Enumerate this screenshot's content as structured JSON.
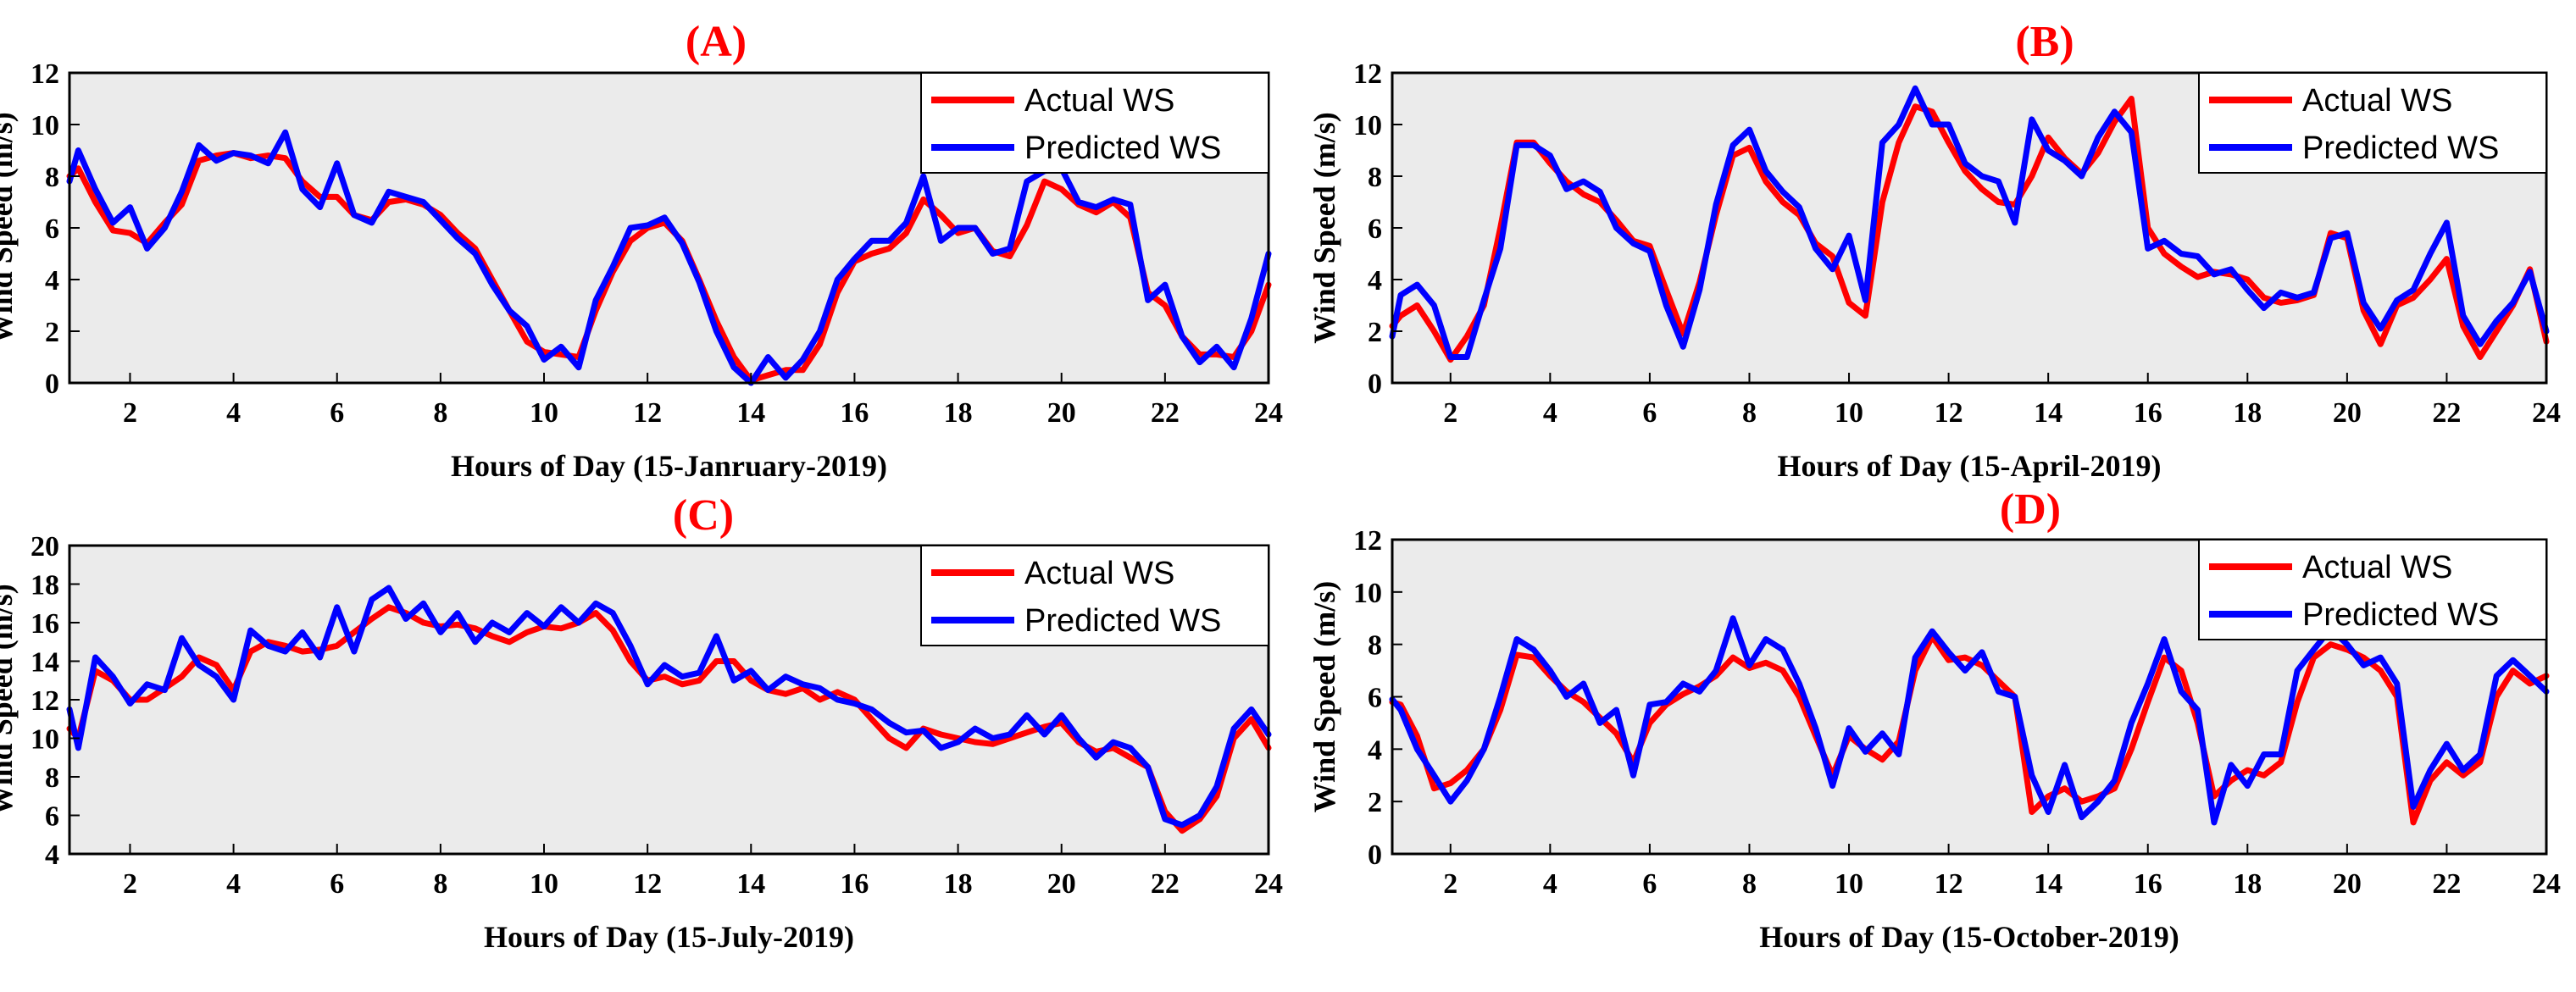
{
  "colors": {
    "actual": "#ff0000",
    "predicted": "#0000ff",
    "plot_bg": "#ebebeb",
    "axis": "#000000",
    "title": "#ff0000"
  },
  "chart_data": [
    {
      "type": "line",
      "panel": "A",
      "title": "(A)",
      "xlabel": "Hours of Day (15-Janruary-2019)",
      "ylabel": "Wind Speed (m/s)",
      "xlim": [
        0.83,
        24
      ],
      "ylim": [
        0,
        12
      ],
      "xticks": [
        2,
        4,
        6,
        8,
        10,
        12,
        14,
        16,
        18,
        20,
        22,
        24
      ],
      "xtick_labels": [
        "2",
        "4",
        "6",
        "8",
        "10",
        "12",
        "14",
        "16",
        "18",
        "20",
        "22",
        "24"
      ],
      "yticks": [
        0,
        2,
        4,
        6,
        8,
        10,
        12
      ],
      "ytick_labels": [
        "0",
        "2",
        "4",
        "6",
        "8",
        "10",
        "12"
      ],
      "legend": "top-right",
      "x": [
        0.83,
        1.0,
        1.33,
        1.67,
        2.0,
        2.33,
        2.67,
        3.0,
        3.33,
        3.67,
        4.0,
        4.33,
        4.67,
        5.0,
        5.33,
        5.67,
        6.0,
        6.33,
        6.67,
        7.0,
        7.33,
        7.67,
        8.0,
        8.33,
        8.67,
        9.0,
        9.33,
        9.67,
        10.0,
        10.33,
        10.67,
        11.0,
        11.33,
        11.67,
        12.0,
        12.33,
        12.67,
        13.0,
        13.33,
        13.67,
        14.0,
        14.33,
        14.67,
        15.0,
        15.33,
        15.67,
        16.0,
        16.33,
        16.67,
        17.0,
        17.33,
        17.67,
        18.0,
        18.33,
        18.67,
        19.0,
        19.33,
        19.67,
        20.0,
        20.33,
        20.67,
        21.0,
        21.33,
        21.67,
        22.0,
        22.33,
        22.67,
        23.0,
        23.33,
        23.67,
        24.0
      ],
      "series": [
        {
          "name": "Actual WS",
          "values": [
            8.0,
            8.3,
            7.0,
            5.9,
            5.8,
            5.4,
            6.2,
            6.9,
            8.6,
            8.8,
            8.9,
            8.7,
            8.8,
            8.7,
            7.8,
            7.2,
            7.2,
            6.5,
            6.3,
            7.0,
            7.1,
            6.9,
            6.5,
            5.8,
            5.2,
            4.0,
            2.8,
            1.6,
            1.2,
            1.1,
            1.0,
            2.8,
            4.3,
            5.5,
            6.0,
            6.2,
            5.5,
            4.0,
            2.4,
            1.0,
            0.1,
            0.3,
            0.5,
            0.5,
            1.5,
            3.5,
            4.7,
            5.0,
            5.2,
            5.8,
            7.1,
            6.5,
            5.8,
            6.0,
            5.1,
            4.9,
            6.1,
            7.8,
            7.5,
            6.9,
            6.6,
            7.0,
            6.4,
            3.5,
            3.0,
            1.8,
            1.1,
            1.1,
            1.0,
            2.0,
            3.8
          ]
        },
        {
          "name": "Predicted WS",
          "values": [
            7.8,
            9.0,
            7.5,
            6.2,
            6.8,
            5.2,
            6.0,
            7.4,
            9.2,
            8.6,
            8.9,
            8.8,
            8.5,
            9.7,
            7.5,
            6.8,
            8.5,
            6.5,
            6.2,
            7.4,
            7.2,
            7.0,
            6.3,
            5.6,
            5.0,
            3.8,
            2.8,
            2.2,
            0.9,
            1.4,
            0.6,
            3.2,
            4.5,
            6.0,
            6.1,
            6.4,
            5.4,
            3.9,
            2.0,
            0.6,
            0.0,
            1.0,
            0.2,
            0.9,
            2.0,
            4.0,
            4.8,
            5.5,
            5.5,
            6.2,
            8.0,
            5.5,
            6.0,
            6.0,
            5.0,
            5.2,
            7.8,
            8.2,
            8.3,
            7.0,
            6.8,
            7.1,
            6.9,
            3.2,
            3.8,
            1.8,
            0.8,
            1.4,
            0.6,
            2.5,
            5.0
          ]
        }
      ]
    },
    {
      "type": "line",
      "panel": "B",
      "title": "(B)",
      "xlabel": "Hours of Day (15-April-2019)",
      "ylabel": "Wind Speed (m/s)",
      "xlim": [
        0.83,
        24
      ],
      "ylim": [
        0,
        12
      ],
      "xticks": [
        2,
        4,
        6,
        8,
        10,
        12,
        14,
        16,
        18,
        20,
        22,
        24
      ],
      "xtick_labels": [
        "2",
        "4",
        "6",
        "8",
        "10",
        "12",
        "14",
        "16",
        "18",
        "20",
        "22",
        "24"
      ],
      "yticks": [
        0,
        2,
        4,
        6,
        8,
        10,
        12
      ],
      "ytick_labels": [
        "0",
        "2",
        "4",
        "6",
        "8",
        "10",
        "12"
      ],
      "legend": "top-right",
      "x": [
        0.83,
        1.0,
        1.33,
        1.67,
        2.0,
        2.33,
        2.67,
        3.0,
        3.33,
        3.67,
        4.0,
        4.33,
        4.67,
        5.0,
        5.33,
        5.67,
        6.0,
        6.33,
        6.67,
        7.0,
        7.33,
        7.67,
        8.0,
        8.33,
        8.67,
        9.0,
        9.33,
        9.67,
        10.0,
        10.33,
        10.67,
        11.0,
        11.33,
        11.67,
        12.0,
        12.33,
        12.67,
        13.0,
        13.33,
        13.67,
        14.0,
        14.33,
        14.67,
        15.0,
        15.33,
        15.67,
        16.0,
        16.33,
        16.67,
        17.0,
        17.33,
        17.67,
        18.0,
        18.33,
        18.67,
        19.0,
        19.33,
        19.67,
        20.0,
        20.33,
        20.67,
        21.0,
        21.33,
        21.67,
        22.0,
        22.33,
        22.67,
        23.0,
        23.33,
        23.67,
        24.0
      ],
      "series": [
        {
          "name": "Actual WS",
          "values": [
            2.2,
            2.6,
            3.0,
            2.0,
            0.9,
            1.8,
            3.0,
            6.0,
            9.3,
            9.3,
            8.5,
            7.8,
            7.3,
            7.0,
            6.3,
            5.5,
            5.3,
            3.6,
            1.9,
            3.9,
            6.5,
            8.8,
            9.1,
            7.8,
            7.0,
            6.5,
            5.4,
            4.9,
            3.1,
            2.6,
            7.0,
            9.3,
            10.7,
            10.5,
            9.3,
            8.2,
            7.5,
            7.0,
            6.9,
            8.0,
            9.5,
            8.7,
            8.1,
            8.9,
            10.1,
            11.0,
            6.0,
            5.0,
            4.5,
            4.1,
            4.3,
            4.2,
            4.0,
            3.3,
            3.1,
            3.2,
            3.4,
            5.8,
            5.6,
            2.8,
            1.5,
            3.0,
            3.3,
            4.0,
            4.8,
            2.2,
            1.0,
            2.0,
            3.0,
            4.4,
            1.6
          ]
        },
        {
          "name": "Predicted WS",
          "values": [
            1.8,
            3.4,
            3.8,
            3.0,
            1.0,
            1.0,
            3.2,
            5.2,
            9.2,
            9.2,
            8.8,
            7.5,
            7.8,
            7.4,
            6.0,
            5.4,
            5.1,
            3.0,
            1.4,
            3.6,
            6.9,
            9.2,
            9.8,
            8.2,
            7.4,
            6.8,
            5.2,
            4.4,
            5.7,
            3.2,
            9.3,
            10.0,
            11.4,
            10.0,
            10.0,
            8.5,
            8.0,
            7.8,
            6.2,
            10.2,
            9.0,
            8.6,
            8.0,
            9.5,
            10.5,
            9.7,
            5.2,
            5.5,
            5.0,
            4.9,
            4.2,
            4.4,
            3.6,
            2.9,
            3.5,
            3.3,
            3.5,
            5.6,
            5.8,
            3.1,
            2.1,
            3.2,
            3.6,
            5.0,
            6.2,
            2.6,
            1.5,
            2.4,
            3.1,
            4.3,
            2.0
          ]
        }
      ]
    },
    {
      "type": "line",
      "panel": "C",
      "title": "(C)",
      "xlabel": "Hours of Day (15-July-2019)",
      "ylabel": "Wind Speed (m/s)",
      "xlim": [
        0.83,
        24
      ],
      "ylim": [
        4,
        20
      ],
      "xticks": [
        2,
        4,
        6,
        8,
        10,
        12,
        14,
        16,
        18,
        20,
        22,
        24
      ],
      "xtick_labels": [
        "2",
        "4",
        "6",
        "8",
        "10",
        "12",
        "14",
        "16",
        "18",
        "20",
        "22",
        "24"
      ],
      "yticks": [
        4,
        6,
        8,
        10,
        12,
        14,
        16,
        18,
        20
      ],
      "ytick_labels": [
        "4",
        "6",
        "8",
        "10",
        "12",
        "14",
        "16",
        "18",
        "20"
      ],
      "legend": "top-right",
      "x": [
        0.83,
        1.0,
        1.33,
        1.67,
        2.0,
        2.33,
        2.67,
        3.0,
        3.33,
        3.67,
        4.0,
        4.33,
        4.67,
        5.0,
        5.33,
        5.67,
        6.0,
        6.33,
        6.67,
        7.0,
        7.33,
        7.67,
        8.0,
        8.33,
        8.67,
        9.0,
        9.33,
        9.67,
        10.0,
        10.33,
        10.67,
        11.0,
        11.33,
        11.67,
        12.0,
        12.33,
        12.67,
        13.0,
        13.33,
        13.67,
        14.0,
        14.33,
        14.67,
        15.0,
        15.33,
        15.67,
        16.0,
        16.33,
        16.67,
        17.0,
        17.33,
        17.67,
        18.0,
        18.33,
        18.67,
        19.0,
        19.33,
        19.67,
        20.0,
        20.33,
        20.67,
        21.0,
        21.33,
        21.67,
        22.0,
        22.33,
        22.67,
        23.0,
        23.33,
        23.67,
        24.0
      ],
      "series": [
        {
          "name": "Actual WS",
          "values": [
            10.5,
            10.0,
            13.5,
            13.0,
            12.0,
            12.0,
            12.6,
            13.2,
            14.2,
            13.8,
            12.5,
            14.5,
            15.0,
            14.8,
            14.5,
            14.6,
            14.8,
            15.5,
            16.2,
            16.8,
            16.5,
            16.0,
            15.8,
            15.9,
            15.7,
            15.3,
            15.0,
            15.5,
            15.8,
            15.7,
            16.0,
            16.5,
            15.6,
            14.0,
            13.0,
            13.2,
            12.8,
            13.0,
            14.0,
            14.0,
            13.0,
            12.5,
            12.3,
            12.6,
            12.0,
            12.4,
            12.0,
            11.0,
            10.0,
            9.5,
            10.5,
            10.2,
            10.0,
            9.8,
            9.7,
            10.0,
            10.3,
            10.6,
            10.8,
            9.8,
            9.3,
            9.5,
            9.0,
            8.5,
            6.2,
            5.2,
            5.8,
            7.0,
            10.0,
            11.0,
            9.5
          ]
        },
        {
          "name": "Predicted WS",
          "values": [
            11.5,
            9.5,
            14.2,
            13.2,
            11.8,
            12.8,
            12.5,
            15.2,
            13.8,
            13.2,
            12.0,
            15.6,
            14.8,
            14.5,
            15.5,
            14.2,
            16.8,
            14.5,
            17.2,
            17.8,
            16.2,
            17.0,
            15.5,
            16.5,
            15.0,
            16.0,
            15.5,
            16.5,
            15.8,
            16.8,
            16.0,
            17.0,
            16.5,
            14.8,
            12.8,
            13.8,
            13.2,
            13.4,
            15.3,
            13.0,
            13.5,
            12.5,
            13.2,
            12.8,
            12.6,
            12.0,
            11.8,
            11.5,
            10.8,
            10.3,
            10.4,
            9.5,
            9.8,
            10.5,
            10.0,
            10.2,
            11.2,
            10.2,
            11.2,
            10.0,
            9.0,
            9.8,
            9.5,
            8.5,
            5.8,
            5.5,
            6.0,
            7.5,
            10.5,
            11.5,
            10.2
          ]
        }
      ]
    },
    {
      "type": "line",
      "panel": "D",
      "title": "(D)",
      "xlabel": "Hours of Day (15-October-2019)",
      "ylabel": "Wind Speed (m/s)",
      "xlim": [
        0.83,
        24
      ],
      "ylim": [
        0,
        12
      ],
      "xticks": [
        2,
        4,
        6,
        8,
        10,
        12,
        14,
        16,
        18,
        20,
        22,
        24
      ],
      "xtick_labels": [
        "2",
        "4",
        "6",
        "8",
        "10",
        "12",
        "14",
        "16",
        "18",
        "20",
        "22",
        "24"
      ],
      "yticks": [
        0,
        2,
        4,
        6,
        8,
        10,
        12
      ],
      "ytick_labels": [
        "0",
        "2",
        "4",
        "6",
        "8",
        "10",
        "12"
      ],
      "legend": "top-right",
      "x": [
        0.83,
        1.0,
        1.33,
        1.67,
        2.0,
        2.33,
        2.67,
        3.0,
        3.33,
        3.67,
        4.0,
        4.33,
        4.67,
        5.0,
        5.33,
        5.67,
        6.0,
        6.33,
        6.67,
        7.0,
        7.33,
        7.67,
        8.0,
        8.33,
        8.67,
        9.0,
        9.33,
        9.67,
        10.0,
        10.33,
        10.67,
        11.0,
        11.33,
        11.67,
        12.0,
        12.33,
        12.67,
        13.0,
        13.33,
        13.67,
        14.0,
        14.33,
        14.67,
        15.0,
        15.33,
        15.67,
        16.0,
        16.33,
        16.67,
        17.0,
        17.33,
        17.67,
        18.0,
        18.33,
        18.67,
        19.0,
        19.33,
        19.67,
        20.0,
        20.33,
        20.67,
        21.0,
        21.33,
        21.67,
        22.0,
        22.33,
        22.67,
        23.0,
        23.33,
        23.67,
        24.0
      ],
      "series": [
        {
          "name": "Actual WS",
          "values": [
            5.8,
            5.7,
            4.5,
            2.5,
            2.7,
            3.2,
            4.0,
            5.5,
            7.6,
            7.5,
            6.8,
            6.2,
            5.8,
            5.2,
            4.6,
            3.5,
            5.0,
            5.7,
            6.1,
            6.4,
            6.8,
            7.5,
            7.1,
            7.3,
            7.0,
            6.0,
            4.5,
            3.0,
            4.5,
            4.0,
            3.6,
            4.3,
            7.0,
            8.3,
            7.4,
            7.5,
            7.2,
            6.6,
            6.0,
            1.6,
            2.2,
            2.5,
            2.0,
            2.2,
            2.5,
            4.0,
            5.8,
            7.5,
            7.0,
            5.0,
            2.2,
            2.8,
            3.2,
            3.0,
            3.5,
            5.8,
            7.5,
            8.0,
            7.8,
            7.5,
            7.0,
            6.0,
            1.2,
            2.8,
            3.5,
            3.0,
            3.5,
            6.0,
            7.0,
            6.5,
            6.8
          ]
        },
        {
          "name": "Predicted WS",
          "values": [
            5.9,
            5.5,
            4.0,
            3.0,
            2.0,
            2.8,
            4.0,
            6.0,
            8.2,
            7.8,
            7.0,
            6.0,
            6.5,
            5.0,
            5.5,
            3.0,
            5.7,
            5.8,
            6.5,
            6.2,
            7.0,
            9.0,
            7.2,
            8.2,
            7.8,
            6.5,
            4.8,
            2.6,
            4.8,
            3.9,
            4.6,
            3.8,
            7.5,
            8.5,
            7.7,
            7.0,
            7.7,
            6.2,
            6.0,
            3.0,
            1.6,
            3.4,
            1.4,
            2.0,
            2.8,
            5.0,
            6.5,
            8.2,
            6.2,
            5.5,
            1.2,
            3.4,
            2.6,
            3.8,
            3.8,
            7.0,
            7.8,
            8.6,
            8.0,
            7.2,
            7.5,
            6.5,
            1.8,
            3.2,
            4.2,
            3.2,
            3.8,
            6.8,
            7.4,
            6.8,
            6.2
          ]
        }
      ]
    }
  ]
}
